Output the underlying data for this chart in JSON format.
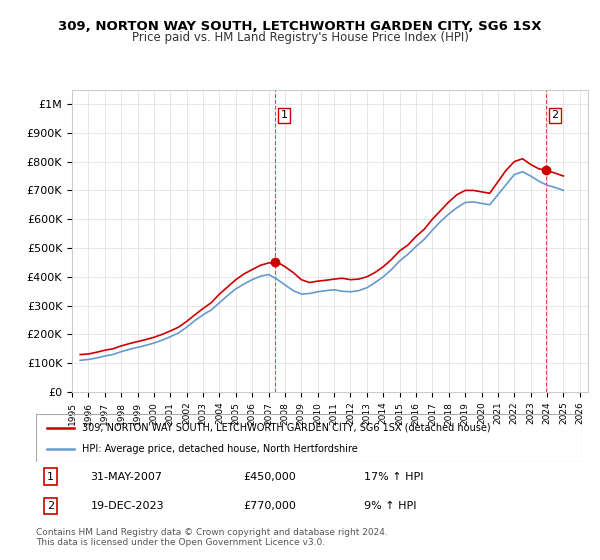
{
  "title": "309, NORTON WAY SOUTH, LETCHWORTH GARDEN CITY, SG6 1SX",
  "subtitle": "Price paid vs. HM Land Registry's House Price Index (HPI)",
  "legend_line1": "309, NORTON WAY SOUTH, LETCHWORTH GARDEN CITY, SG6 1SX (detached house)",
  "legend_line2": "HPI: Average price, detached house, North Hertfordshire",
  "annotation1": {
    "num": "1",
    "date": "31-MAY-2007",
    "price": "£450,000",
    "hpi": "17% ↑ HPI"
  },
  "annotation2": {
    "num": "2",
    "date": "19-DEC-2023",
    "price": "£770,000",
    "hpi": "9% ↑ HPI"
  },
  "footer": "Contains HM Land Registry data © Crown copyright and database right 2024.\nThis data is licensed under the Open Government Licence v3.0.",
  "red_color": "#cc0000",
  "blue_color": "#6699cc",
  "dot_color": "#cc0000",
  "marker1_x": 2007.42,
  "marker1_y": 450000,
  "marker2_x": 2023.96,
  "marker2_y": 770000,
  "vline1_x": 2007.42,
  "vline2_x": 2023.96,
  "ylim": [
    0,
    1050000
  ],
  "xlim_start": 1995.0,
  "xlim_end": 2026.5,
  "ytick_vals": [
    0,
    100000,
    200000,
    300000,
    400000,
    500000,
    600000,
    700000,
    800000,
    900000,
    1000000
  ],
  "ytick_labels": [
    "£0",
    "£100K",
    "£200K",
    "£300K",
    "£400K",
    "£500K",
    "£600K",
    "£700K",
    "£800K",
    "£900K",
    "£1M"
  ],
  "xtick_vals": [
    1995,
    1996,
    1997,
    1998,
    1999,
    2000,
    2001,
    2002,
    2003,
    2004,
    2005,
    2006,
    2007,
    2008,
    2009,
    2010,
    2011,
    2012,
    2013,
    2014,
    2015,
    2016,
    2017,
    2018,
    2019,
    2020,
    2021,
    2022,
    2023,
    2024,
    2025,
    2026
  ],
  "red_x": [
    1995.5,
    1996.0,
    1996.5,
    1997.0,
    1997.5,
    1998.0,
    1998.5,
    1999.0,
    1999.5,
    2000.0,
    2000.5,
    2001.0,
    2001.5,
    2002.0,
    2002.5,
    2003.0,
    2003.5,
    2004.0,
    2004.5,
    2005.0,
    2005.5,
    2006.0,
    2006.5,
    2007.0,
    2007.42,
    2007.5,
    2008.0,
    2008.5,
    2009.0,
    2009.5,
    2010.0,
    2010.5,
    2011.0,
    2011.5,
    2012.0,
    2012.5,
    2013.0,
    2013.5,
    2014.0,
    2014.5,
    2015.0,
    2015.5,
    2016.0,
    2016.5,
    2017.0,
    2017.5,
    2018.0,
    2018.5,
    2019.0,
    2019.5,
    2020.0,
    2020.5,
    2021.0,
    2021.5,
    2022.0,
    2022.5,
    2023.0,
    2023.5,
    2023.96,
    2024.0,
    2024.5,
    2025.0
  ],
  "red_y": [
    130000,
    132000,
    138000,
    145000,
    150000,
    160000,
    168000,
    175000,
    182000,
    190000,
    200000,
    212000,
    225000,
    245000,
    268000,
    290000,
    310000,
    340000,
    365000,
    390000,
    410000,
    425000,
    440000,
    448000,
    450000,
    452000,
    435000,
    415000,
    390000,
    380000,
    385000,
    388000,
    392000,
    395000,
    390000,
    392000,
    400000,
    415000,
    435000,
    460000,
    490000,
    510000,
    540000,
    565000,
    600000,
    630000,
    660000,
    685000,
    700000,
    700000,
    695000,
    690000,
    730000,
    770000,
    800000,
    810000,
    790000,
    775000,
    770000,
    768000,
    760000,
    750000
  ],
  "blue_x": [
    1995.5,
    1996.0,
    1996.5,
    1997.0,
    1997.5,
    1998.0,
    1998.5,
    1999.0,
    1999.5,
    2000.0,
    2000.5,
    2001.0,
    2001.5,
    2002.0,
    2002.5,
    2003.0,
    2003.5,
    2004.0,
    2004.5,
    2005.0,
    2005.5,
    2006.0,
    2006.5,
    2007.0,
    2007.5,
    2008.0,
    2008.5,
    2009.0,
    2009.5,
    2010.0,
    2010.5,
    2011.0,
    2011.5,
    2012.0,
    2012.5,
    2013.0,
    2013.5,
    2014.0,
    2014.5,
    2015.0,
    2015.5,
    2016.0,
    2016.5,
    2017.0,
    2017.5,
    2018.0,
    2018.5,
    2019.0,
    2019.5,
    2020.0,
    2020.5,
    2021.0,
    2021.5,
    2022.0,
    2022.5,
    2023.0,
    2023.5,
    2024.0,
    2024.5,
    2025.0
  ],
  "blue_y": [
    110000,
    113000,
    118000,
    125000,
    130000,
    140000,
    148000,
    155000,
    162000,
    170000,
    180000,
    192000,
    205000,
    225000,
    248000,
    268000,
    285000,
    310000,
    335000,
    358000,
    375000,
    390000,
    402000,
    408000,
    392000,
    372000,
    352000,
    340000,
    342000,
    348000,
    352000,
    355000,
    350000,
    348000,
    352000,
    362000,
    380000,
    400000,
    425000,
    455000,
    478000,
    505000,
    530000,
    562000,
    592000,
    618000,
    640000,
    658000,
    660000,
    655000,
    650000,
    685000,
    720000,
    755000,
    765000,
    750000,
    732000,
    718000,
    710000,
    700000
  ]
}
